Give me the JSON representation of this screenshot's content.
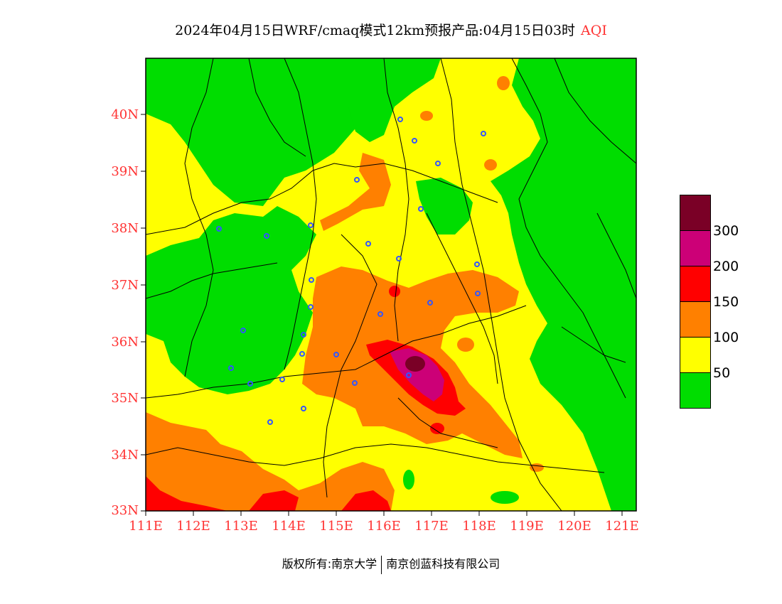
{
  "title": {
    "main": "2024年04月15日WRF/cmaq模式12km预报产品:04月15日03时",
    "variable": "AQI"
  },
  "map": {
    "lat_labels": [
      "40N",
      "39N",
      "38N",
      "37N",
      "36N",
      "35N",
      "34N",
      "33N"
    ],
    "lon_labels": [
      "111E",
      "112E",
      "113E",
      "114E",
      "115E",
      "116E",
      "117E",
      "118E",
      "119E",
      "120E",
      "121E"
    ]
  },
  "legend": {
    "levels": [
      {
        "color": "#7a0026"
      },
      {
        "color": "#cc0077"
      },
      {
        "color": "#ff0000"
      },
      {
        "color": "#ff8000"
      },
      {
        "color": "#ffff00"
      },
      {
        "color": "#00dd00"
      }
    ],
    "labels": [
      "300",
      "200",
      "150",
      "100",
      "50"
    ]
  },
  "footer": {
    "left": "版权所有:南京大学",
    "right": "南京创蓝科技有限公司"
  }
}
